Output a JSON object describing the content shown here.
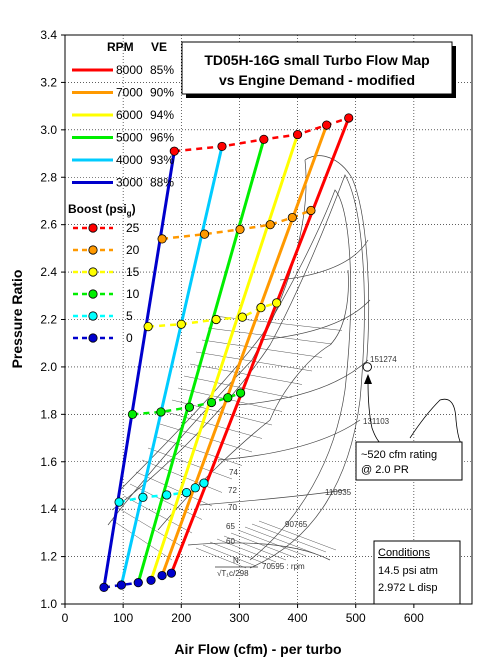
{
  "chart_data": {
    "type": "line",
    "title_line1": "TD05H-16G small Turbo Flow Map",
    "title_line2": "vs Engine Demand - modified",
    "xlabel": "Air Flow (cfm) - per turbo",
    "ylabel": "Pressure Ratio",
    "xlim": [
      0,
      700
    ],
    "ylim": [
      1.0,
      3.4
    ],
    "xticks": [
      0,
      100,
      200,
      300,
      400,
      500,
      600
    ],
    "yticks": [
      1.0,
      1.2,
      1.4,
      1.6,
      1.8,
      2.0,
      2.2,
      2.4,
      2.6,
      2.8,
      3.0,
      3.2,
      3.4
    ],
    "ytick_labels": [
      "1.0",
      "1.2",
      "1.4",
      "1.6",
      "1.8",
      "2.0",
      "2.2",
      "2.4",
      "2.6",
      "2.8",
      "3.0",
      "3.2",
      "3.4"
    ],
    "grid": true,
    "legend_rpm_header": "RPM",
    "legend_ve_header": "VE",
    "legend_boost_header": "Boost (psi",
    "legend_boost_sub": "g",
    "legend_boost_close": ")",
    "rpm_series": [
      {
        "name": "8000",
        "ve": "85%",
        "color": "#ff0000",
        "x": [
          183,
          488
        ],
        "y": [
          1.13,
          3.05
        ]
      },
      {
        "name": "7000",
        "ve": "90%",
        "color": "#ff9900",
        "x": [
          167,
          450
        ],
        "y": [
          1.12,
          3.02
        ]
      },
      {
        "name": "6000",
        "ve": "94%",
        "color": "#ffff00",
        "x": [
          148,
          400
        ],
        "y": [
          1.1,
          2.98
        ]
      },
      {
        "name": "5000",
        "ve": "96%",
        "color": "#00ee00",
        "x": [
          126,
          342
        ],
        "y": [
          1.09,
          2.96
        ]
      },
      {
        "name": "4000",
        "ve": "93%",
        "color": "#00ccff",
        "x": [
          97,
          270
        ],
        "y": [
          1.08,
          2.93
        ]
      },
      {
        "name": "3000",
        "ve": "88%",
        "color": "#0000cc",
        "x": [
          67,
          188
        ],
        "y": [
          1.07,
          2.91
        ]
      }
    ],
    "boost_series": [
      {
        "name": "25",
        "color": "#ff0000",
        "x": [
          188,
          270,
          342,
          400,
          450,
          488
        ],
        "y": [
          2.91,
          2.93,
          2.96,
          2.98,
          3.02,
          3.05
        ]
      },
      {
        "name": "20",
        "color": "#ff9900",
        "x": [
          167,
          240,
          301,
          353,
          391,
          423
        ],
        "y": [
          2.54,
          2.56,
          2.58,
          2.6,
          2.63,
          2.66
        ]
      },
      {
        "name": "15",
        "color": "#ffff00",
        "x": [
          143,
          200,
          260,
          305,
          337,
          364
        ],
        "y": [
          2.17,
          2.18,
          2.2,
          2.21,
          2.25,
          2.27
        ]
      },
      {
        "name": "10",
        "color": "#00ee00",
        "x": [
          116,
          165,
          214,
          252,
          280,
          302
        ],
        "y": [
          1.8,
          1.81,
          1.83,
          1.85,
          1.87,
          1.89
        ]
      },
      {
        "name": "5",
        "color": "#00ffff",
        "x": [
          93,
          134,
          175,
          209,
          224,
          239
        ],
        "y": [
          1.43,
          1.45,
          1.46,
          1.47,
          1.49,
          1.51
        ]
      },
      {
        "name": "0",
        "color": "#0000cc",
        "x": [
          67,
          97,
          126,
          148,
          167,
          183
        ],
        "y": [
          1.07,
          1.08,
          1.09,
          1.1,
          1.12,
          1.13
        ]
      }
    ],
    "map_labels": {
      "speed_1": "151274",
      "speed_2": "131103",
      "speed_3": "110935",
      "speed_4": "90765",
      "speed_5": "70595 : rpm",
      "eff_1": "74",
      "eff_2": "72",
      "eff_3": "70",
      "eff_4": "65",
      "eff_5": "60",
      "corr_n": "N",
      "corr_t": "√T₁c/298"
    },
    "rating_point": {
      "x": 520,
      "y": 2.0
    },
    "rating_note_line1": "~520 cfm rating",
    "rating_note_line2": "@ 2.0 PR",
    "conditions_title": "Conditions",
    "conditions_line1": "14.5 psi atm",
    "conditions_line2": "2.972 L disp"
  }
}
